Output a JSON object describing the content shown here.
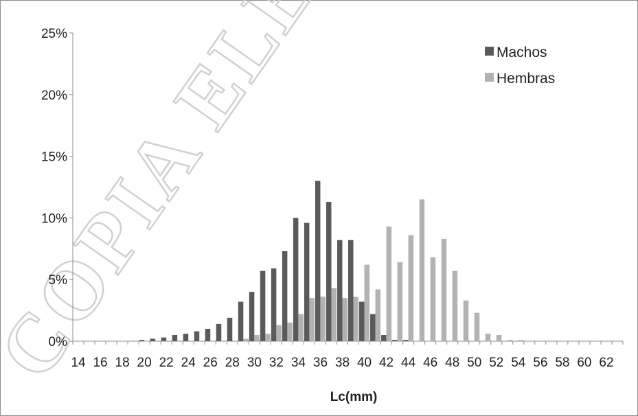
{
  "watermark": {
    "text": "COPIA ELECTRÓNICA"
  },
  "chart_data": {
    "type": "bar",
    "title": "",
    "xlabel": "Lc(mm)",
    "ylabel": "",
    "ylim": [
      0,
      25
    ],
    "y_ticks": [
      "0%",
      "5%",
      "10%",
      "15%",
      "20%",
      "25%"
    ],
    "x_tick_labels": [
      "14",
      "16",
      "18",
      "20",
      "22",
      "24",
      "26",
      "28",
      "30",
      "32",
      "34",
      "36",
      "38",
      "40",
      "42",
      "44",
      "46",
      "48",
      "50",
      "52",
      "54",
      "56",
      "58",
      "60",
      "62"
    ],
    "categories": [
      14,
      15,
      16,
      17,
      18,
      19,
      20,
      21,
      22,
      23,
      24,
      25,
      26,
      27,
      28,
      29,
      30,
      31,
      32,
      33,
      34,
      35,
      36,
      37,
      38,
      39,
      40,
      41,
      42,
      43,
      44,
      45,
      46,
      47,
      48,
      49,
      50,
      51,
      52,
      53,
      54,
      55,
      56,
      57,
      58,
      59,
      60,
      61,
      62,
      63
    ],
    "grid": false,
    "legend_position": "top-right",
    "colors": {
      "Machos": "#5a5a5a",
      "Hembras": "#b2b2b2",
      "axis": "#8c8c8c"
    },
    "series": [
      {
        "name": "Machos",
        "values": [
          0,
          0,
          0,
          0,
          0,
          0,
          0.1,
          0.2,
          0.3,
          0.5,
          0.6,
          0.8,
          1.0,
          1.4,
          1.9,
          3.2,
          4.0,
          5.7,
          5.9,
          7.3,
          10.0,
          9.6,
          13.0,
          11.3,
          8.2,
          8.2,
          3.2,
          2.2,
          0.5,
          0.1,
          0.1,
          0,
          0,
          0,
          0,
          0,
          0,
          0,
          0,
          0,
          0,
          0,
          0,
          0,
          0,
          0,
          0,
          0,
          0,
          0
        ]
      },
      {
        "name": "Hembras",
        "values": [
          0,
          0,
          0,
          0,
          0,
          0,
          0,
          0,
          0,
          0,
          0,
          0,
          0,
          0,
          0,
          0.2,
          0.5,
          0.6,
          1.3,
          1.5,
          2.2,
          3.5,
          3.6,
          4.3,
          3.5,
          3.6,
          6.2,
          4.2,
          9.3,
          6.4,
          8.6,
          11.5,
          6.8,
          8.3,
          5.7,
          3.3,
          2.3,
          0.6,
          0.5,
          0.1,
          0.1,
          0,
          0,
          0,
          0,
          0,
          0,
          0,
          0,
          0
        ]
      }
    ]
  }
}
